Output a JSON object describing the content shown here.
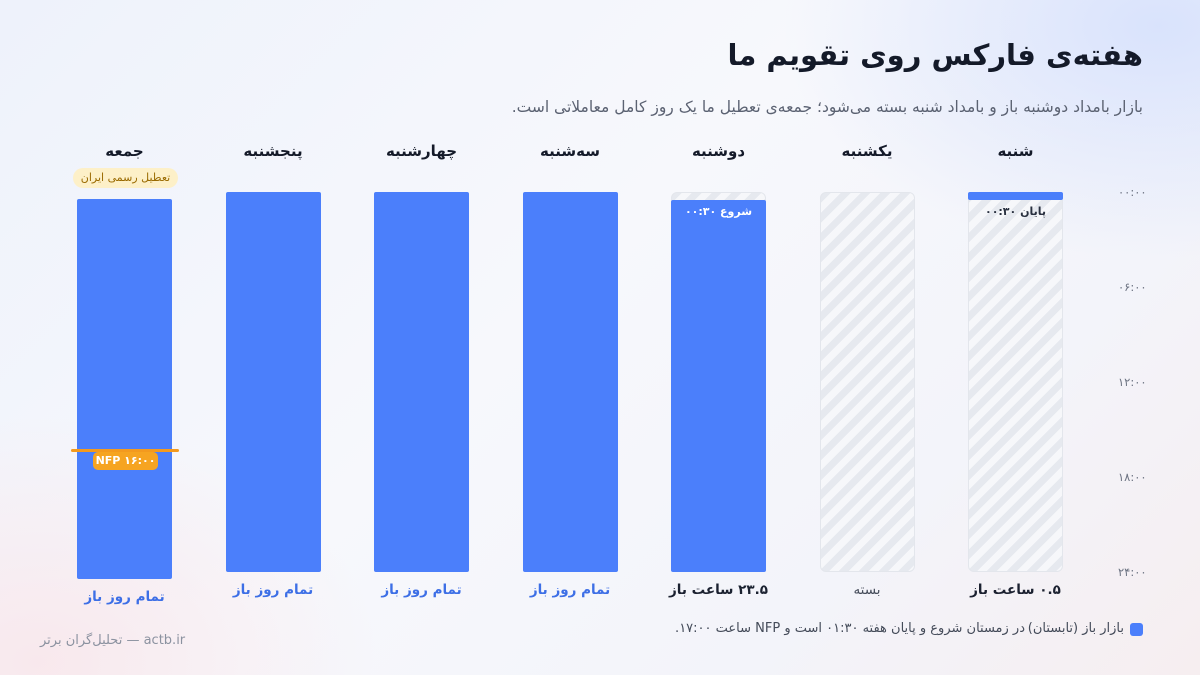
{
  "chart_data": {
    "type": "bar",
    "title": "هفته‌ی فارکس روی تقویم ما",
    "subtitle": "بازار بامداد دوشنبه باز و بامداد شنبه بسته می‌شود؛ جمعه‌ی تعطیل ما یک روز کامل معاملاتی است.",
    "y_ticks": [
      "۰۰:۰۰",
      "۰۶:۰۰",
      "۱۲:۰۰",
      "۱۸:۰۰",
      "۲۴:۰۰"
    ],
    "ylim": [
      0,
      24
    ],
    "days": [
      {
        "name": "شنبه",
        "open_start": 0,
        "open_end": 0.5,
        "summary": "۰.۵ ساعت باز",
        "note": "پایان ۰۰:۳۰",
        "status": "partial"
      },
      {
        "name": "یکشنبه",
        "open_start": 0,
        "open_end": 0,
        "summary": "بسته",
        "note": "",
        "status": "closed"
      },
      {
        "name": "دوشنبه",
        "open_start": 0.5,
        "open_end": 24,
        "summary": "۲۳.۵ ساعت باز",
        "note": "شروع ۰۰:۳۰",
        "status": "partial"
      },
      {
        "name": "سه‌شنبه",
        "open_start": 0,
        "open_end": 24,
        "summary": "تمام روز باز",
        "note": "",
        "status": "open"
      },
      {
        "name": "چهارشنبه",
        "open_start": 0,
        "open_end": 24,
        "summary": "تمام روز باز",
        "note": "",
        "status": "open"
      },
      {
        "name": "پنجشنبه",
        "open_start": 0,
        "open_end": 24,
        "summary": "تمام روز باز",
        "note": "",
        "status": "open"
      },
      {
        "name": "جمعه",
        "open_start": 0,
        "open_end": 24,
        "summary": "تمام روز باز",
        "note": "",
        "status": "open"
      }
    ],
    "holiday_badge": "تعطیل رسمی ایران",
    "nfp": {
      "label": "NFP ۱۶:۰۰",
      "hour": 16
    },
    "legend": "بازار باز (تابستان)",
    "footnote": "در زمستان شروع و پایان هفته ۰۱:۳۰ است و NFP ساعت ۱۷:۰۰.",
    "colors": {
      "open": "#4b7ffb",
      "nfp": "#f6a421",
      "closed": "#e6e9ef"
    }
  },
  "credit": "actb.ir — تحلیل‌گران برتر"
}
